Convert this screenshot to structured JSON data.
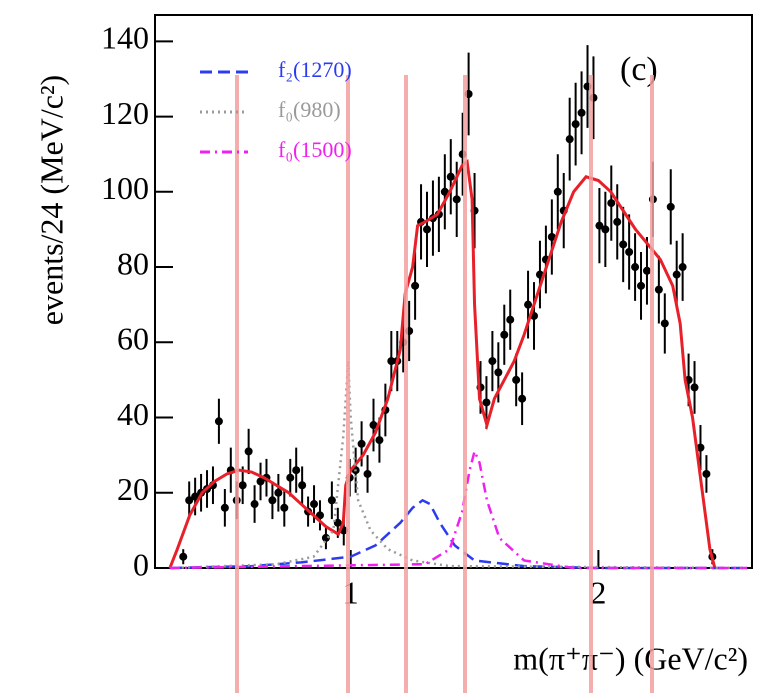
{
  "chart_data": {
    "type": "line",
    "ylabel": "events/24 (MeV/c²)",
    "xlabel": "m(π⁺π⁻) (GeV/c²)",
    "annotation": "(c)",
    "xlim": [
      0.21,
      2.62
    ],
    "ylim": [
      0,
      147
    ],
    "xticks": [
      1,
      2
    ],
    "yticks": [
      0,
      20,
      40,
      60,
      80,
      100,
      120,
      140
    ],
    "series": [
      {
        "style": "points",
        "color": "#000000",
        "x": [
          0.324,
          0.348,
          0.372,
          0.396,
          0.42,
          0.444,
          0.468,
          0.492,
          0.516,
          0.54,
          0.564,
          0.588,
          0.612,
          0.636,
          0.66,
          0.684,
          0.708,
          0.732,
          0.756,
          0.78,
          0.804,
          0.828,
          0.852,
          0.876,
          0.9,
          0.924,
          0.948,
          0.972,
          0.996,
          1.02,
          1.044,
          1.068,
          1.092,
          1.116,
          1.14,
          1.164,
          1.188,
          1.212,
          1.236,
          1.26,
          1.284,
          1.308,
          1.332,
          1.356,
          1.38,
          1.404,
          1.428,
          1.452,
          1.476,
          1.5,
          1.524,
          1.548,
          1.572,
          1.596,
          1.62,
          1.644,
          1.668,
          1.692,
          1.716,
          1.74,
          1.764,
          1.788,
          1.812,
          1.836,
          1.86,
          1.884,
          1.908,
          1.932,
          1.956,
          1.98,
          2.004,
          2.028,
          2.052,
          2.076,
          2.1,
          2.124,
          2.148,
          2.172,
          2.196,
          2.22,
          2.244,
          2.268,
          2.292,
          2.316,
          2.34,
          2.364,
          2.388,
          2.412,
          2.436,
          2.46
        ],
        "values": [
          3,
          18,
          19,
          20,
          21,
          22,
          39,
          16,
          26,
          18,
          22,
          31,
          17,
          23,
          24,
          18,
          20,
          16,
          24,
          26,
          22,
          15,
          17,
          14,
          8,
          18,
          12,
          10,
          24,
          26,
          33,
          25,
          38,
          34,
          42,
          55,
          55,
          60,
          63,
          75,
          92,
          90,
          93,
          94,
          100,
          104,
          98,
          110,
          126,
          95,
          48,
          44,
          55,
          52,
          62,
          66,
          50,
          45,
          70,
          67,
          78,
          82,
          88,
          100,
          95,
          114,
          118,
          121,
          128,
          125,
          91,
          90,
          97,
          92,
          86,
          84,
          80,
          75,
          79,
          98,
          74,
          65,
          96,
          78,
          80,
          50,
          48,
          32,
          25,
          3
        ],
        "errors": [
          2,
          5,
          5,
          5,
          5,
          5,
          6,
          5,
          6,
          5,
          5,
          6,
          5,
          5,
          5,
          5,
          5,
          5,
          5,
          6,
          5,
          4,
          5,
          4,
          3,
          5,
          4,
          4,
          5,
          6,
          6,
          5,
          7,
          6,
          7,
          8,
          8,
          8,
          8,
          9,
          10,
          10,
          10,
          10,
          10,
          10,
          10,
          11,
          11,
          10,
          7,
          7,
          8,
          8,
          8,
          8,
          7,
          7,
          9,
          9,
          9,
          9,
          10,
          10,
          10,
          11,
          11,
          11,
          11,
          11,
          10,
          10,
          10,
          10,
          10,
          10,
          9,
          9,
          9,
          10,
          9,
          8,
          10,
          9,
          9,
          7,
          7,
          6,
          5,
          2
        ]
      },
      {
        "style": "solid",
        "color": "#e8202a",
        "x": [
          0.27,
          0.3,
          0.35,
          0.4,
          0.45,
          0.5,
          0.55,
          0.6,
          0.65,
          0.7,
          0.75,
          0.8,
          0.85,
          0.9,
          0.95,
          0.97,
          0.98,
          1.0,
          1.05,
          1.1,
          1.15,
          1.2,
          1.22,
          1.25,
          1.27,
          1.3,
          1.35,
          1.4,
          1.45,
          1.47,
          1.49,
          1.5,
          1.52,
          1.55,
          1.58,
          1.62,
          1.66,
          1.7,
          1.75,
          1.8,
          1.85,
          1.9,
          1.95,
          2.0,
          2.05,
          2.1,
          2.15,
          2.2,
          2.25,
          2.3,
          2.33,
          2.35,
          2.38,
          2.4,
          2.43,
          2.45,
          2.47
        ],
        "values": [
          0,
          5,
          14,
          20,
          23,
          25,
          26,
          25.5,
          24,
          22,
          20,
          17,
          14,
          11,
          9,
          12,
          22,
          26,
          30,
          36,
          45,
          58,
          73,
          80,
          91,
          92,
          94,
          100,
          107,
          108,
          98,
          70,
          45,
          38,
          45,
          50,
          55,
          62,
          72,
          82,
          92,
          100,
          104,
          103,
          100,
          95,
          90,
          86,
          82,
          75,
          65,
          50,
          40,
          30,
          15,
          5,
          0
        ]
      },
      {
        "name": "f₂(1270)",
        "style": "dashed",
        "color": "#2b3cf0",
        "x": [
          0.27,
          0.6,
          0.8,
          1.0,
          1.1,
          1.2,
          1.25,
          1.29,
          1.32,
          1.36,
          1.42,
          1.5,
          1.7,
          2.0,
          2.6
        ],
        "values": [
          0,
          0.5,
          1.5,
          3,
          6,
          12,
          16,
          18,
          17,
          12,
          6,
          2,
          0.5,
          0,
          0
        ]
      },
      {
        "name": "f₀(980)",
        "style": "dotted",
        "color": "#9a9a9a",
        "x": [
          0.27,
          0.7,
          0.85,
          0.93,
          0.97,
          0.99,
          1.0,
          1.03,
          1.08,
          1.15,
          1.25,
          1.4,
          2.6
        ],
        "values": [
          0,
          1,
          3,
          10,
          35,
          55,
          40,
          18,
          10,
          5,
          2,
          0.5,
          0
        ]
      },
      {
        "name": "f₀(1500)",
        "style": "dashdot",
        "color": "#f020f0",
        "x": [
          0.27,
          1.3,
          1.4,
          1.45,
          1.48,
          1.5,
          1.52,
          1.55,
          1.6,
          1.7,
          1.9,
          2.6
        ],
        "values": [
          0,
          1,
          5,
          15,
          26,
          31,
          28,
          18,
          8,
          2,
          0,
          0
        ]
      }
    ]
  }
}
